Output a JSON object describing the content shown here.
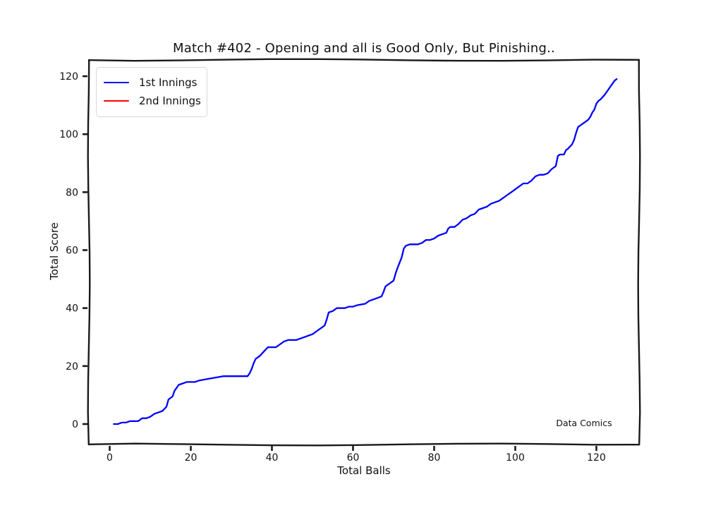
{
  "figure": {
    "watermark": "Data Comics",
    "background": "#ffffff",
    "frame_color": "#1a1a1a"
  },
  "chart_data": {
    "type": "line",
    "title": "Match #402 - Opening and all is Good Only, But Pinishing..",
    "xlabel": "Total Balls",
    "ylabel": "Total Score",
    "xticks": [
      0,
      20,
      40,
      60,
      80,
      100,
      120
    ],
    "yticks": [
      0,
      20,
      40,
      60,
      80,
      100,
      120
    ],
    "xlim": [
      -5,
      130
    ],
    "ylim": [
      -7,
      126
    ],
    "grid": false,
    "legend_position": "upper left",
    "style": "xkcd-hand-drawn",
    "series": [
      {
        "name": "1st Innings",
        "color": "#0000ff",
        "points": [
          [
            1,
            0
          ],
          [
            2,
            0
          ],
          [
            3,
            0.5
          ],
          [
            4,
            0.5
          ],
          [
            5,
            1
          ],
          [
            7,
            1
          ],
          [
            8,
            2
          ],
          [
            9,
            2
          ],
          [
            10,
            2.5
          ],
          [
            11,
            3.5
          ],
          [
            12,
            4
          ],
          [
            13,
            4.5
          ],
          [
            14,
            6
          ],
          [
            14.5,
            8.5
          ],
          [
            15,
            9
          ],
          [
            15.5,
            9.5
          ],
          [
            16,
            11.5
          ],
          [
            17,
            13.5
          ],
          [
            18,
            14
          ],
          [
            19,
            14.5
          ],
          [
            21,
            14.5
          ],
          [
            22,
            15
          ],
          [
            24,
            15.5
          ],
          [
            26,
            16
          ],
          [
            28,
            16.5
          ],
          [
            31,
            16.5
          ],
          [
            34,
            16.5
          ],
          [
            34.5,
            17.5
          ],
          [
            35,
            19
          ],
          [
            35.5,
            21
          ],
          [
            36,
            22.5
          ],
          [
            37,
            23.5
          ],
          [
            38,
            25
          ],
          [
            39,
            26.5
          ],
          [
            41,
            26.5
          ],
          [
            42,
            27.5
          ],
          [
            43,
            28.5
          ],
          [
            44,
            29
          ],
          [
            46,
            29
          ],
          [
            47,
            29.5
          ],
          [
            48,
            30
          ],
          [
            49,
            30.5
          ],
          [
            50,
            31
          ],
          [
            51,
            32
          ],
          [
            52,
            33
          ],
          [
            53,
            34
          ],
          [
            53.5,
            36
          ],
          [
            54,
            38.5
          ],
          [
            55,
            39
          ],
          [
            56,
            40
          ],
          [
            58,
            40
          ],
          [
            59,
            40.5
          ],
          [
            60,
            40.5
          ],
          [
            61,
            41
          ],
          [
            63,
            41.5
          ],
          [
            64,
            42.5
          ],
          [
            65,
            43
          ],
          [
            66,
            43.5
          ],
          [
            67,
            44
          ],
          [
            67.5,
            45.5
          ],
          [
            68,
            47.5
          ],
          [
            69,
            48.5
          ],
          [
            70,
            49.5
          ],
          [
            70.5,
            52
          ],
          [
            71,
            54
          ],
          [
            72,
            57.5
          ],
          [
            72.5,
            60.5
          ],
          [
            73,
            61.5
          ],
          [
            74,
            62
          ],
          [
            76,
            62
          ],
          [
            77,
            62.5
          ],
          [
            78,
            63.5
          ],
          [
            79,
            63.5
          ],
          [
            80,
            64
          ],
          [
            81,
            65
          ],
          [
            82,
            65.5
          ],
          [
            83,
            66
          ],
          [
            83.5,
            67.5
          ],
          [
            84,
            68
          ],
          [
            85,
            68
          ],
          [
            86,
            69
          ],
          [
            87,
            70.5
          ],
          [
            88,
            71
          ],
          [
            89,
            72
          ],
          [
            90,
            72.5
          ],
          [
            91,
            74
          ],
          [
            92,
            74.5
          ],
          [
            93,
            75
          ],
          [
            94,
            76
          ],
          [
            95,
            76.5
          ],
          [
            96,
            77
          ],
          [
            97,
            78
          ],
          [
            98,
            79
          ],
          [
            99,
            80
          ],
          [
            100,
            81
          ],
          [
            101,
            82
          ],
          [
            102,
            83
          ],
          [
            103,
            83
          ],
          [
            104,
            84
          ],
          [
            105,
            85.5
          ],
          [
            106,
            86
          ],
          [
            107,
            86
          ],
          [
            108,
            86.5
          ],
          [
            109,
            88
          ],
          [
            110,
            89
          ],
          [
            110.5,
            92.5
          ],
          [
            111,
            93
          ],
          [
            112,
            93
          ],
          [
            112.5,
            94.5
          ],
          [
            113,
            95
          ],
          [
            114,
            96.5
          ],
          [
            114.5,
            98
          ],
          [
            115,
            100.5
          ],
          [
            115.5,
            102.5
          ],
          [
            116,
            103
          ],
          [
            117,
            104
          ],
          [
            118,
            105
          ],
          [
            118.5,
            106
          ],
          [
            119,
            107.5
          ],
          [
            119.5,
            108.5
          ],
          [
            120,
            110.5
          ],
          [
            120.5,
            111.5
          ],
          [
            121,
            112
          ],
          [
            122,
            113.5
          ],
          [
            122.5,
            114.5
          ],
          [
            123,
            115.5
          ],
          [
            123.5,
            116.5
          ],
          [
            124,
            117.5
          ],
          [
            124.5,
            118.5
          ],
          [
            125,
            119
          ]
        ]
      },
      {
        "name": "2nd Innings",
        "color": "#ff0000",
        "points": []
      }
    ]
  }
}
